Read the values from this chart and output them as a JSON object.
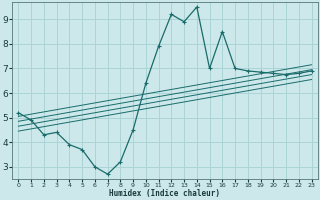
{
  "xlabel": "Humidex (Indice chaleur)",
  "ylabel": "",
  "bg_color": "#cce8ea",
  "grid_color": "#aad4d6",
  "line_color": "#1a6b6b",
  "xlim": [
    -0.5,
    23.5
  ],
  "ylim": [
    2.5,
    9.7
  ],
  "xticks": [
    0,
    1,
    2,
    3,
    4,
    5,
    6,
    7,
    8,
    9,
    10,
    11,
    12,
    13,
    14,
    15,
    16,
    17,
    18,
    19,
    20,
    21,
    22,
    23
  ],
  "yticks": [
    3,
    4,
    5,
    6,
    7,
    8,
    9
  ],
  "main_line_x": [
    0,
    1,
    2,
    3,
    4,
    5,
    6,
    7,
    8,
    9,
    10,
    11,
    12,
    13,
    14,
    15,
    16,
    17,
    18,
    19,
    20,
    21,
    22,
    23
  ],
  "main_line_y": [
    5.2,
    4.9,
    4.3,
    4.4,
    3.9,
    3.7,
    3.0,
    2.7,
    3.2,
    4.5,
    6.4,
    7.9,
    9.2,
    8.9,
    9.5,
    7.0,
    8.5,
    7.0,
    6.9,
    6.85,
    6.8,
    6.75,
    6.8,
    6.9
  ],
  "regression_lines": [
    {
      "x": [
        0,
        23
      ],
      "y": [
        5.05,
        7.15
      ]
    },
    {
      "x": [
        0,
        23
      ],
      "y": [
        4.85,
        6.95
      ]
    },
    {
      "x": [
        0,
        23
      ],
      "y": [
        4.65,
        6.75
      ]
    },
    {
      "x": [
        0,
        23
      ],
      "y": [
        4.45,
        6.55
      ]
    }
  ]
}
